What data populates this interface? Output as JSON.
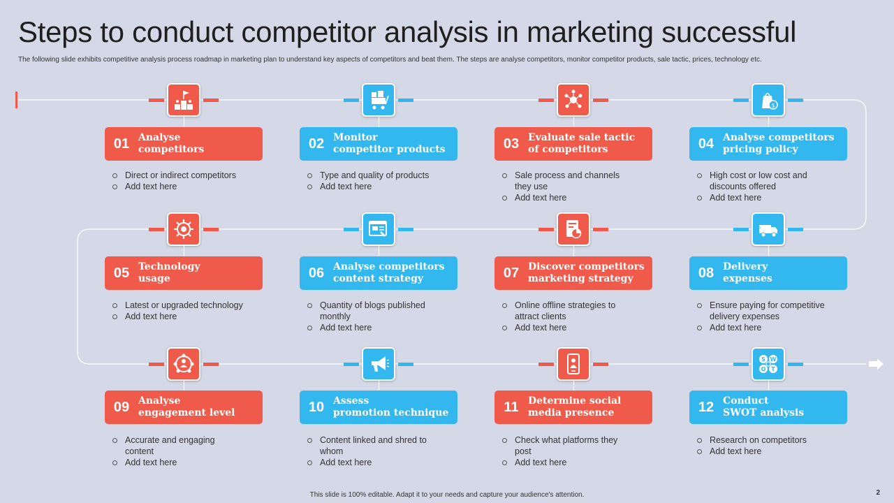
{
  "title": "Steps to conduct competitor analysis in marketing successful",
  "subtitle": "The following slide exhibits competitive analysis process roadmap in marketing plan to understand key aspects of competitors and beat them. The steps are analyse competitors, monitor competitor products, sale tactic, prices, technology etc.",
  "colors": {
    "red": "#f05a4a",
    "blue": "#33b7ef"
  },
  "steps": [
    {
      "num": "01",
      "title": "Analyse\ncompetitors",
      "icon": "podium-flag-icon",
      "color": "red",
      "bullets": [
        "Direct or indirect competitors",
        "Add text here"
      ]
    },
    {
      "num": "02",
      "title": "Monitor\ncompetitor products",
      "icon": "cart-boxes-icon",
      "color": "blue",
      "bullets": [
        "Type and quality of products",
        "Add text here"
      ]
    },
    {
      "num": "03",
      "title": "Evaluate sale tactic\nof competitors",
      "icon": "network-hub-icon",
      "color": "red",
      "bullets": [
        "Sale process and channels they use",
        "Add text here"
      ]
    },
    {
      "num": "04",
      "title": "Analyse competitors\npricing policy",
      "icon": "price-bag-icon",
      "color": "blue",
      "bullets": [
        "High cost or low cost and discounts offered",
        "Add text here"
      ]
    },
    {
      "num": "05",
      "title": "Technology\nusage",
      "icon": "gear-web-icon",
      "color": "red",
      "bullets": [
        "Latest or upgraded technology",
        "Add text here"
      ]
    },
    {
      "num": "06",
      "title": "Analyse competitors\ncontent strategy",
      "icon": "content-web-icon",
      "color": "blue",
      "bullets": [
        "Quantity of blogs published monthly",
        "Add text here"
      ]
    },
    {
      "num": "07",
      "title": "Discover competitors\nmarketing strategy",
      "icon": "document-chart-icon",
      "color": "red",
      "bullets": [
        "Online offline strategies to attract clients",
        "Add text here"
      ]
    },
    {
      "num": "08",
      "title": "Delivery\nexpenses",
      "icon": "delivery-truck-icon",
      "color": "blue",
      "bullets": [
        "Ensure paying for competitive delivery expenses",
        "Add text here"
      ]
    },
    {
      "num": "09",
      "title": "Analyse\nengagement level",
      "icon": "people-network-icon",
      "color": "red",
      "bullets": [
        "Accurate and engaging content",
        "Add text here"
      ]
    },
    {
      "num": "10",
      "title": "Assess\npromotion technique",
      "icon": "megaphone-icon",
      "color": "blue",
      "bullets": [
        "Content linked and shred to whom",
        "Add text here"
      ]
    },
    {
      "num": "11",
      "title": "Determine social\nmedia presence",
      "icon": "smartphone-person-icon",
      "color": "red",
      "bullets": [
        "Check what platforms they post",
        "Add text here"
      ]
    },
    {
      "num": "12",
      "title": "Conduct\nSWOT analysis",
      "icon": "swot-icon",
      "color": "blue",
      "bullets": [
        "Research on competitors",
        "Add text here"
      ],
      "icon_letters": [
        "S",
        "W",
        "O",
        "T"
      ]
    }
  ],
  "footer": "This slide is 100% editable. Adapt it to your needs and capture your audience's attention.",
  "page_number": "2"
}
